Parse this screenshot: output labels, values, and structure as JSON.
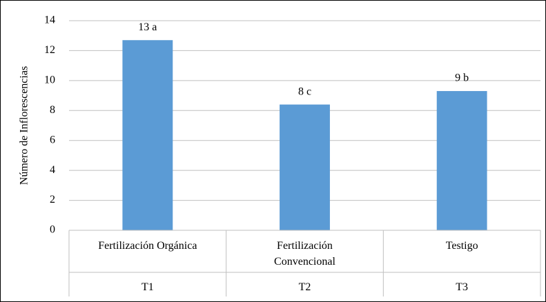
{
  "chart_data": {
    "type": "bar",
    "y_label": "Número de Inflorescencias",
    "categories": [
      "Fertilización Orgánica",
      "Fertilización Convencional",
      "Testigo"
    ],
    "category_groups": [
      "T1",
      "T2",
      "T3"
    ],
    "values": [
      12.7,
      8.4,
      9.3
    ],
    "value_labels": [
      "13 a",
      "8 c",
      "9 b"
    ],
    "color": "#5b9bd5",
    "ylim": [
      0,
      14
    ],
    "yticks": [
      0,
      2,
      4,
      6,
      8,
      10,
      12,
      14
    ],
    "grid": true
  }
}
